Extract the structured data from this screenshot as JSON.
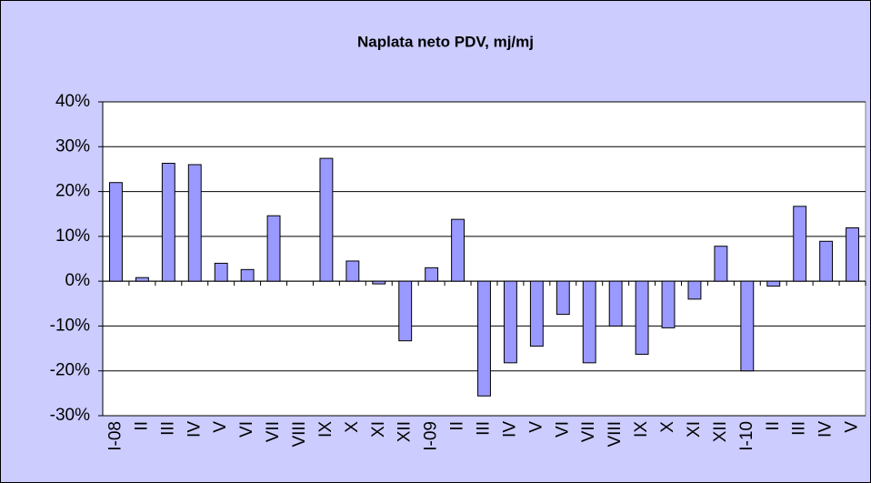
{
  "chart_data": {
    "type": "bar",
    "title": "Naplata neto PDV, mj/mj",
    "categories": [
      "I-08",
      "II",
      "III",
      "IV",
      "V",
      "VI",
      "VII",
      "VIII",
      "IX",
      "X",
      "XI",
      "XII",
      "I-09",
      "II",
      "III",
      "IV",
      "V",
      "VI",
      "VII",
      "VIII",
      "IX",
      "X",
      "XI",
      "XII",
      "I-10",
      "II",
      "III",
      "IV",
      "V"
    ],
    "values": [
      22,
      0.8,
      26.3,
      26,
      4,
      2.6,
      14.6,
      0,
      27.4,
      4.5,
      -0.6,
      -13.3,
      3,
      13.8,
      -25.6,
      -18.2,
      -14.5,
      -7.4,
      -18.2,
      -10,
      -16.3,
      -10.4,
      -4,
      7.8,
      -20,
      -1.1,
      16.7,
      8.9,
      11.9
    ],
    "color": "#9999ff",
    "ylim": [
      -30,
      40
    ],
    "yticks": [
      {
        "value": -30,
        "label": "-30%"
      },
      {
        "value": -20,
        "label": "-20%"
      },
      {
        "value": -10,
        "label": "-10%"
      },
      {
        "value": 0,
        "label": "0%"
      },
      {
        "value": 10,
        "label": "10%"
      },
      {
        "value": 20,
        "label": "20%"
      },
      {
        "value": 30,
        "label": "30%"
      },
      {
        "value": 40,
        "label": "40%"
      }
    ],
    "grid": true
  }
}
